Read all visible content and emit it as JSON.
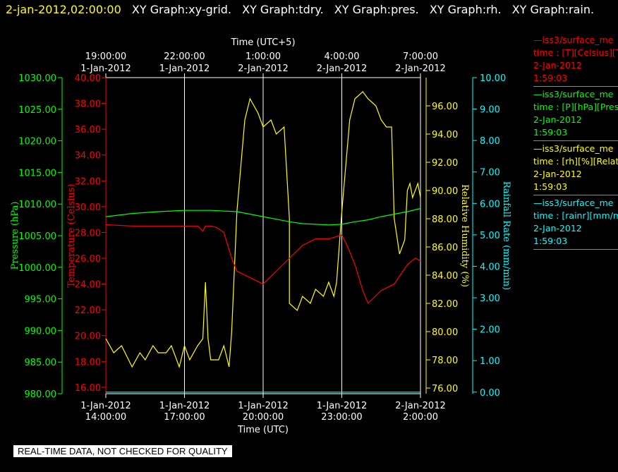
{
  "header": {
    "timestamp": "2-jan-2012,02:00:00",
    "graphs": [
      "XY Graph:xy-grid.",
      "XY Graph:tdry.",
      "XY Graph:pres.",
      "XY Graph:rh.",
      "XY Graph:rain."
    ]
  },
  "legend": [
    {
      "line1": "—iss3/surface_me",
      "line2": "time : [T][Celsius][T",
      "line3": "2-Jan-2012",
      "line4": "1:59:03",
      "color": "#ff0000"
    },
    {
      "line1": "—iss3/surface_me",
      "line2": "time : [P][hPa][Pres",
      "line3": "2-Jan-2012",
      "line4": "1:59:03",
      "color": "#00ff00"
    },
    {
      "line1": "—iss3/surface_me",
      "line2": "time : [rh][%][Relati",
      "line3": "2-Jan-2012",
      "line4": "1:59:03",
      "color": "#ffff00"
    },
    {
      "line1": "—iss3/surface_me",
      "line2": "time : [rainr][mm/mi",
      "line3": "2-Jan-2012",
      "line4": "1:59:03",
      "color": "#00ffff"
    }
  ],
  "notice": "REAL-TIME DATA, NOT CHECKED FOR QUALITY",
  "chart_data": {
    "type": "line",
    "xlabel_bottom": "Time (UTC)",
    "xlabel_top": "Time (UTC+5)",
    "x_range_utc_hours": [
      14.0,
      26.0
    ],
    "bottom_ticks": [
      {
        "h": 14,
        "date": "1-Jan-2012",
        "time": "14:00:00"
      },
      {
        "h": 17,
        "date": "1-Jan-2012",
        "time": "17:00:00"
      },
      {
        "h": 20,
        "date": "1-Jan-2012",
        "time": "20:00:00"
      },
      {
        "h": 23,
        "date": "1-Jan-2012",
        "time": "23:00:00"
      },
      {
        "h": 26,
        "date": "2-Jan-2012",
        "time": "2:00:00"
      }
    ],
    "top_ticks": [
      {
        "h": 14,
        "time": "19:00:00",
        "date": "1-Jan-2012"
      },
      {
        "h": 17,
        "time": "22:00:00",
        "date": "1-Jan-2012"
      },
      {
        "h": 20,
        "time": "1:00:00",
        "date": "2-Jan-2012"
      },
      {
        "h": 23,
        "time": "4:00:00",
        "date": "2-Jan-2012"
      },
      {
        "h": 26,
        "time": "7:00:00",
        "date": "2-Jan-2012"
      }
    ],
    "grid": true,
    "axes": {
      "pressure": {
        "label": "Pressure (hPa)",
        "color": "#00ff00",
        "range": [
          980,
          1030
        ],
        "ticks": [
          "980.00",
          "985.00",
          "990.00",
          "995.00",
          "1000.00",
          "1005.00",
          "1010.00",
          "1015.00",
          "1020.00",
          "1025.00",
          "1030.00"
        ]
      },
      "temperature": {
        "label": "Temperature (Celsius)",
        "color": "#ff0000",
        "range": [
          15.5,
          40
        ],
        "ticks": [
          "16.00",
          "18.00",
          "20.00",
          "22.00",
          "24.00",
          "26.00",
          "28.00",
          "30.00",
          "32.00",
          "34.00",
          "36.00",
          "38.00",
          "40.00"
        ]
      },
      "humidity": {
        "label": "Relative Humidity (%)",
        "color": "#ffff00",
        "range": [
          75.6,
          98
        ],
        "ticks": [
          "76.00",
          "78.00",
          "80.00",
          "82.00",
          "84.00",
          "86.00",
          "88.00",
          "90.00",
          "92.00",
          "94.00",
          "96.00"
        ]
      },
      "rain": {
        "label": "Rainfall Rate (mm/min)",
        "color": "#00ffff",
        "range": [
          -0.05,
          10
        ],
        "ticks": [
          "0.00",
          "1.00",
          "2.00",
          "3.00",
          "4.00",
          "5.00",
          "6.00",
          "7.00",
          "8.00",
          "9.00",
          "10.00"
        ]
      }
    },
    "series": [
      {
        "name": "rh",
        "axis": "humidity",
        "color": "#ffff00",
        "x": [
          14.0,
          14.3,
          14.6,
          15.0,
          15.3,
          15.5,
          15.8,
          16.0,
          16.3,
          16.5,
          16.8,
          17.0,
          17.2,
          17.5,
          17.7,
          17.8,
          17.9,
          18.0,
          18.3,
          18.5,
          18.7,
          18.8,
          19.0,
          19.3,
          19.5,
          19.8,
          20.0,
          20.3,
          20.5,
          20.8,
          21.0,
          21.0,
          21.3,
          21.5,
          21.8,
          22.0,
          22.3,
          22.5,
          22.7,
          22.8,
          23.0,
          23.3,
          23.5,
          23.8,
          24.0,
          24.3,
          24.5,
          24.7,
          24.9,
          25.0,
          25.2,
          25.4,
          25.5,
          25.6,
          25.7,
          25.8,
          25.9,
          26.0
        ],
        "values": [
          79.5,
          78.5,
          79.0,
          77.5,
          78.5,
          78.0,
          79.0,
          78.5,
          78.5,
          79.0,
          77.5,
          79.0,
          78.0,
          79.0,
          79.5,
          83.5,
          79.5,
          78.0,
          78.0,
          79.0,
          77.5,
          80.0,
          88.5,
          95.0,
          96.5,
          95.5,
          94.5,
          95.0,
          94.0,
          94.5,
          88.0,
          82.0,
          81.5,
          82.5,
          82.0,
          83.0,
          82.5,
          83.5,
          82.5,
          83.5,
          88.5,
          95.0,
          96.5,
          97.0,
          96.5,
          96.0,
          95.0,
          94.5,
          94.5,
          88.0,
          85.5,
          86.5,
          90.0,
          90.5,
          89.5,
          90.0,
          90.5,
          89.5
        ]
      },
      {
        "name": "T",
        "axis": "temperature",
        "color": "#ff0000",
        "x": [
          14.0,
          15.0,
          16.0,
          17.0,
          17.5,
          17.7,
          17.8,
          17.9,
          18.0,
          18.2,
          18.5,
          18.8,
          19.0,
          19.5,
          20.0,
          20.5,
          21.0,
          21.5,
          22.0,
          22.5,
          23.0,
          23.2,
          23.5,
          23.8,
          24.0,
          24.5,
          25.0,
          25.5,
          25.8,
          26.0
        ],
        "values": [
          28.6,
          28.5,
          28.5,
          28.5,
          28.5,
          28.1,
          28.5,
          28.5,
          28.5,
          28.4,
          28.0,
          26.0,
          25.0,
          24.5,
          24.0,
          25.0,
          26.0,
          27.0,
          27.5,
          27.5,
          27.8,
          27.0,
          25.5,
          23.5,
          22.5,
          23.5,
          24.0,
          25.5,
          26.0,
          25.8
        ]
      },
      {
        "name": "P",
        "axis": "pressure",
        "color": "#00ff00",
        "x": [
          14.0,
          15.0,
          16.0,
          17.0,
          18.0,
          19.0,
          19.5,
          20.0,
          20.5,
          21.0,
          21.5,
          22.0,
          22.5,
          23.0,
          23.5,
          24.0,
          24.5,
          25.0,
          25.5,
          26.0
        ],
        "values": [
          1008.0,
          1008.5,
          1008.8,
          1009.0,
          1009.0,
          1008.8,
          1008.4,
          1008.0,
          1007.6,
          1007.2,
          1006.9,
          1006.8,
          1006.7,
          1006.8,
          1007.2,
          1007.5,
          1008.0,
          1008.4,
          1008.8,
          1009.3
        ]
      },
      {
        "name": "rainr",
        "axis": "rain",
        "color": "#00ffff",
        "x": [
          14.0,
          26.0
        ],
        "values": [
          0.0,
          0.0
        ]
      }
    ]
  }
}
